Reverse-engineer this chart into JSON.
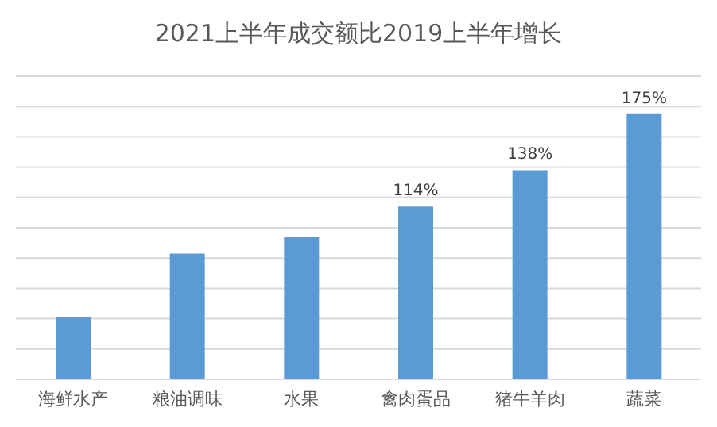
{
  "chart_data": {
    "type": "bar",
    "title": "2021上半年成交额比2019上半年增长",
    "categories": [
      "海鲜水产",
      "粮油调味",
      "水果",
      "禽肉蛋品",
      "猪牛羊肉",
      "蔬菜"
    ],
    "values": [
      41,
      83,
      94,
      114,
      138,
      175
    ],
    "value_labels": [
      null,
      null,
      null,
      "114%",
      "138%",
      "175%"
    ],
    "color": "#5b9bd5",
    "ylim": [
      0,
      200
    ],
    "yticks": [
      {
        "value": 0,
        "label": null
      },
      {
        "value": 20,
        "label": null
      },
      {
        "value": 40,
        "label": null
      },
      {
        "value": 60,
        "label": null
      },
      {
        "value": 80,
        "label": null
      },
      {
        "value": 100,
        "label": null
      },
      {
        "value": 120,
        "label": null
      },
      {
        "value": 140,
        "label": null
      },
      {
        "value": 160,
        "label": null
      },
      {
        "value": 180,
        "label": null
      },
      {
        "value": 200,
        "label": null
      }
    ],
    "grid": "y",
    "tick_labels": "x"
  }
}
